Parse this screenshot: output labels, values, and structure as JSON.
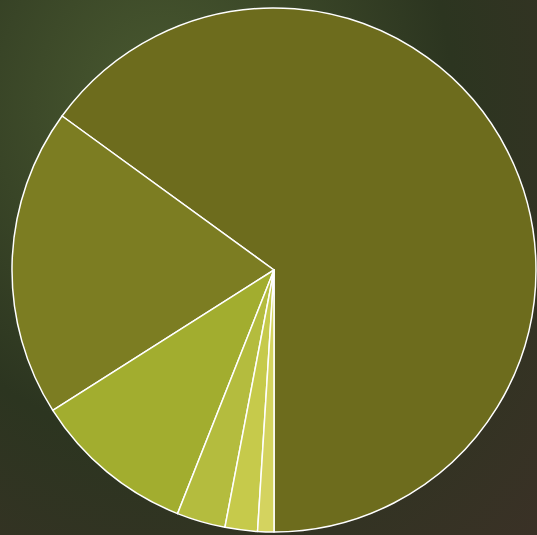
{
  "chart_data": {
    "type": "pie",
    "values": [
      65,
      19,
      10,
      3,
      2,
      1
    ],
    "colors": [
      "#6d6c1d",
      "#7c7d22",
      "#a2ad2f",
      "#b4bc3e",
      "#c6ca4b",
      "#d4d35f"
    ],
    "data_labels": false
  }
}
